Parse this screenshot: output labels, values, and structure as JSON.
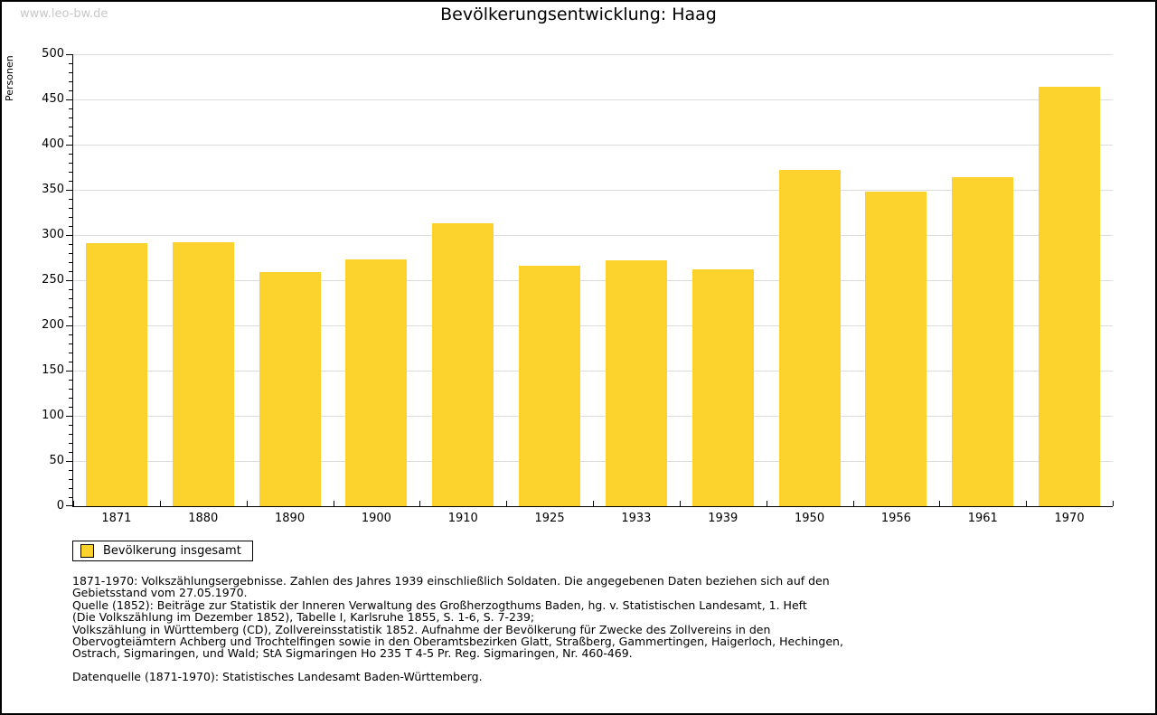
{
  "header": {
    "watermark": "www.leo-bw.de",
    "title": "Bevölkerungsentwicklung: Haag"
  },
  "chart_data": {
    "type": "bar",
    "title": "Bevölkerungsentwicklung: Haag",
    "xlabel": "",
    "ylabel": "Personen",
    "categories": [
      "1871",
      "1880",
      "1890",
      "1900",
      "1910",
      "1925",
      "1933",
      "1939",
      "1950",
      "1956",
      "1961",
      "1970"
    ],
    "series": [
      {
        "name": "Bevölkerung insgesamt",
        "values": [
          291,
          292,
          259,
          273,
          313,
          266,
          272,
          262,
          372,
          348,
          364,
          464
        ]
      }
    ],
    "ylim": [
      0,
      500
    ],
    "ytick_major": 50,
    "ytick_minor": 10,
    "grid": "horizontal-major-gridlines",
    "legend_position": "bottom-left",
    "bar_color": "#FCD32D"
  },
  "legend": {
    "label": "Bevölkerung insgesamt",
    "swatch_color": "#FCD32D"
  },
  "notes": {
    "lines": [
      "1871-1970: Volkszählungsergebnisse. Zahlen des Jahres 1939 einschließlich Soldaten. Die angegebenen Daten beziehen sich auf den",
      "Gebietsstand vom 27.05.1970.",
      "Quelle (1852): Beiträge zur Statistik der Inneren Verwaltung des Großherzogthums Baden, hg. v. Statistischen Landesamt, 1. Heft",
      "(Die Volkszählung im Dezember 1852), Tabelle I, Karlsruhe 1855, S. 1-6, S. 7-239;",
      "Volkszählung in Württemberg (CD), Zollvereinsstatistik 1852. Aufnahme der Bevölkerung für Zwecke des Zollvereins in den",
      "Obervogteiämtern Achberg und Trochtelfingen sowie in den Oberamtsbezirken Glatt, Straßberg, Gammertingen, Haigerloch, Hechingen,",
      "Ostrach, Sigmaringen, und Wald; StA Sigmaringen Ho 235 T 4-5 Pr. Reg. Sigmaringen, Nr. 460-469."
    ],
    "datasource": "Datenquelle (1871-1970): Statistisches Landesamt Baden-Württemberg."
  },
  "colors": {
    "bar": "#FCD32D",
    "grid": "#DCDCDC",
    "axis": "#000000",
    "watermark": "#C8C8C8"
  }
}
